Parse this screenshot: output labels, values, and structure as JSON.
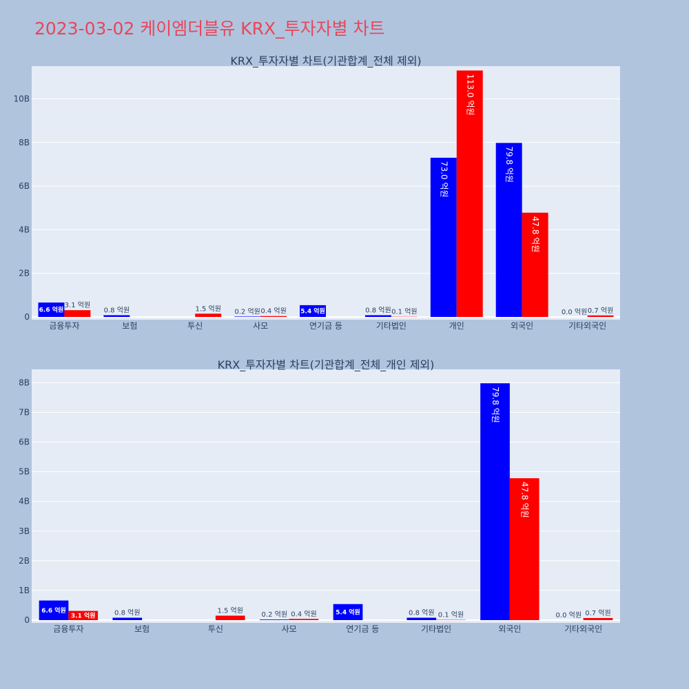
{
  "page": {
    "title": "2023-03-02 케이엠더블유 KRX_투자자별 차트",
    "title_color": "#e8465a",
    "background": "#b0c4de",
    "plot_background": "#e5ecf6"
  },
  "chart_data": [
    {
      "type": "bar",
      "title": "KRX_투자자별 차트(기관합계_전체 제외)",
      "categories": [
        "금융투자",
        "보험",
        "투신",
        "사모",
        "연기금 등",
        "기타법인",
        "개인",
        "외국인",
        "기타외국인"
      ],
      "ylim": [
        0,
        11500000000
      ],
      "yticks": [
        0,
        2000000000,
        4000000000,
        6000000000,
        8000000000,
        10000000000
      ],
      "ytick_labels": [
        "0",
        "2B",
        "4B",
        "6B",
        "8B",
        "10B"
      ],
      "grid": true,
      "legend": "none",
      "series": [
        {
          "color": "#0000ff",
          "values": [
            660000000,
            80000000,
            0,
            20000000,
            540000000,
            80000000,
            7300000000,
            7980000000,
            0
          ],
          "labels": [
            "6.6 억원",
            "0.8 억원",
            "",
            "0.2 억원",
            "5.4 억원",
            "0.8 억원",
            "73.0 억원",
            "79.8 억원",
            "0.0 억원"
          ]
        },
        {
          "color": "#ff0000",
          "values": [
            310000000,
            0,
            150000000,
            40000000,
            0,
            10000000,
            11300000000,
            4780000000,
            70000000
          ],
          "labels": [
            "3.1 억원",
            "",
            "1.5 억원",
            "0.4 억원",
            "",
            "0.1 억원",
            "113.0 억원",
            "47.8 억원",
            "0.7 억원"
          ]
        }
      ]
    },
    {
      "type": "bar",
      "title": "KRX_투자자별 차트(기관합계_전체_개인 제외)",
      "categories": [
        "금융투자",
        "보험",
        "투신",
        "사모",
        "연기금 등",
        "기타법인",
        "외국인",
        "기타외국인"
      ],
      "ylim": [
        0,
        8450000000
      ],
      "yticks": [
        0,
        1000000000,
        2000000000,
        3000000000,
        4000000000,
        5000000000,
        6000000000,
        7000000000,
        8000000000
      ],
      "ytick_labels": [
        "0",
        "1B",
        "2B",
        "3B",
        "4B",
        "5B",
        "6B",
        "7B",
        "8B"
      ],
      "grid": true,
      "legend": "none",
      "series": [
        {
          "color": "#0000ff",
          "values": [
            660000000,
            80000000,
            0,
            20000000,
            540000000,
            80000000,
            7980000000,
            0
          ],
          "labels": [
            "6.6 억원",
            "0.8 억원",
            "",
            "0.2 억원",
            "5.4 억원",
            "0.8 억원",
            "79.8 억원",
            "0.0 억원"
          ]
        },
        {
          "color": "#ff0000",
          "values": [
            310000000,
            0,
            150000000,
            40000000,
            0,
            10000000,
            4780000000,
            70000000
          ],
          "labels": [
            "3.1 억원",
            "",
            "1.5 억원",
            "0.4 억원",
            "",
            "0.1 억원",
            "47.8 억원",
            "0.7 억원"
          ]
        }
      ]
    }
  ]
}
